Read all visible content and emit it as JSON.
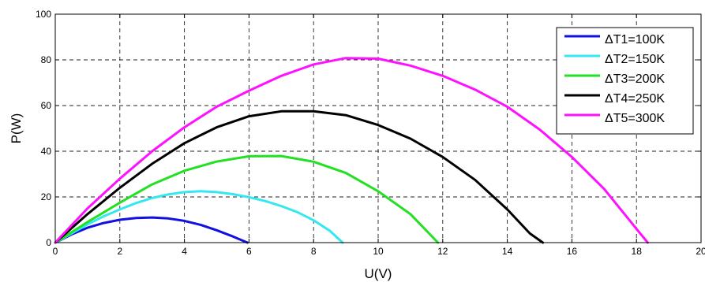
{
  "chart_data": {
    "type": "line",
    "title": "",
    "xlabel": "U(V)",
    "ylabel": "P(W)",
    "xlim": [
      0,
      20
    ],
    "ylim": [
      0,
      100
    ],
    "xticks": [
      0,
      2,
      4,
      6,
      8,
      10,
      12,
      14,
      16,
      18,
      20
    ],
    "yticks": [
      0,
      20,
      40,
      60,
      80,
      100
    ],
    "grid": true,
    "legend_position": "top-right",
    "series": [
      {
        "name": "ΔT1=100K",
        "color": "#1010e0",
        "x": [
          0,
          0.5,
          1.0,
          1.5,
          2.0,
          2.5,
          3.0,
          3.5,
          4.0,
          4.5,
          5.0,
          5.5,
          5.95
        ],
        "y": [
          0,
          3.6,
          6.5,
          8.6,
          10.0,
          10.8,
          11.0,
          10.6,
          9.5,
          7.8,
          5.4,
          2.7,
          0
        ]
      },
      {
        "name": "ΔT2=150K",
        "color": "#33e8f0",
        "x": [
          0,
          0.5,
          1.0,
          1.5,
          2.0,
          2.5,
          3.0,
          3.5,
          4.0,
          4.5,
          5.0,
          5.5,
          6.0,
          6.5,
          7.0,
          7.5,
          8.0,
          8.5,
          8.9
        ],
        "y": [
          0,
          4.0,
          8.0,
          11.5,
          14.5,
          17.3,
          19.5,
          21.1,
          22.1,
          22.5,
          22.1,
          21.2,
          19.9,
          18.2,
          16.0,
          13.3,
          9.8,
          5.2,
          0
        ]
      },
      {
        "name": "ΔT3=200K",
        "color": "#22e022",
        "x": [
          0,
          1,
          2,
          3,
          4,
          5,
          6,
          7,
          8,
          9,
          10,
          11,
          11.85
        ],
        "y": [
          0,
          9.0,
          17.5,
          25.5,
          31.5,
          35.5,
          37.8,
          37.9,
          35.4,
          30.5,
          22.5,
          12.5,
          0
        ]
      },
      {
        "name": "ΔT4=250K",
        "color": "#000000",
        "x": [
          0,
          1,
          2,
          3,
          4,
          5,
          6,
          7,
          8,
          9,
          10,
          11,
          12,
          13,
          14,
          14.7,
          15.1
        ],
        "y": [
          0,
          12.5,
          24.0,
          34.5,
          43.5,
          50.5,
          55.3,
          57.5,
          57.5,
          55.8,
          51.5,
          45.5,
          37.5,
          27.5,
          14.5,
          4.0,
          0
        ]
      },
      {
        "name": "ΔT5=300K",
        "color": "#ff11ff",
        "x": [
          0,
          1,
          2,
          3,
          4,
          5,
          6,
          7,
          8,
          9,
          10,
          11,
          12,
          13,
          14,
          15,
          16,
          17,
          18,
          18.35
        ],
        "y": [
          0,
          15.0,
          28.0,
          40.0,
          50.5,
          59.5,
          66.5,
          73.0,
          78.0,
          80.8,
          80.5,
          77.5,
          73.0,
          67.0,
          59.5,
          49.5,
          37.5,
          23.5,
          6.0,
          0
        ]
      }
    ]
  }
}
